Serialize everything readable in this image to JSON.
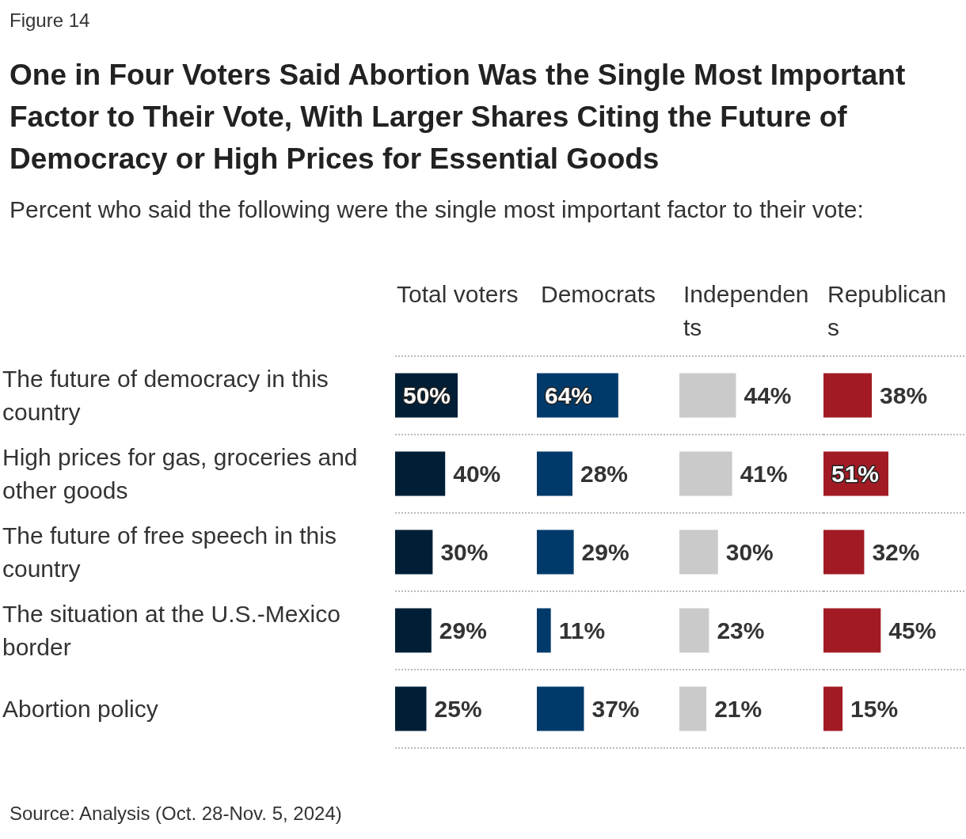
{
  "chart_data": [
    {
      "type": "bar",
      "orientation": "horizontal",
      "title": "One in Four Voters Said Abortion Was the Single Most Important Factor to Their Vote, With Larger Shares Citing the Future of Democracy or High Prices for Essential Goods",
      "subtitle": "Percent who said the following were the single most important factor to their vote:",
      "annotations": [
        "Figure 14",
        "Source: Analysis (Oct. 28-Nov. 5, 2024)"
      ],
      "xlabel": "Total voters",
      "categories": [
        "The future of democracy in this country",
        "High prices for gas, groceries and other goods",
        "The future of free speech in this country",
        "The situation at the U.S.-Mexico border",
        "Abortion policy"
      ],
      "values": [
        50,
        40,
        30,
        29,
        25
      ],
      "value_labels": [
        "50%",
        "40%",
        "30%",
        "29%",
        "25%"
      ],
      "color": "#001f36",
      "data_labels": true,
      "grid": "y",
      "tick_labels": "y"
    },
    {
      "type": "bar",
      "orientation": "horizontal",
      "xlabel": "Democrats",
      "values": [
        64,
        28,
        29,
        11,
        37
      ],
      "value_labels": [
        "64%",
        "28%",
        "29%",
        "11%",
        "37%"
      ],
      "color": "#003a6b",
      "data_labels": true,
      "grid": "y",
      "tick_labels": false
    },
    {
      "type": "bar",
      "orientation": "horizontal",
      "xlabel": "Independents",
      "values": [
        44,
        41,
        30,
        23,
        21
      ],
      "value_labels": [
        "44%",
        "41%",
        "30%",
        "23%",
        "21%"
      ],
      "color": "#cacaca",
      "data_labels": true,
      "grid": "y",
      "tick_labels": false
    },
    {
      "type": "bar",
      "orientation": "horizontal",
      "xlabel": "Republicans",
      "values": [
        38,
        51,
        32,
        45,
        15
      ],
      "value_labels": [
        "38%",
        "51%",
        "32%",
        "45%",
        "15%"
      ],
      "color": "#a21b24",
      "data_labels": true,
      "grid": "y",
      "tick_labels": false
    }
  ]
}
